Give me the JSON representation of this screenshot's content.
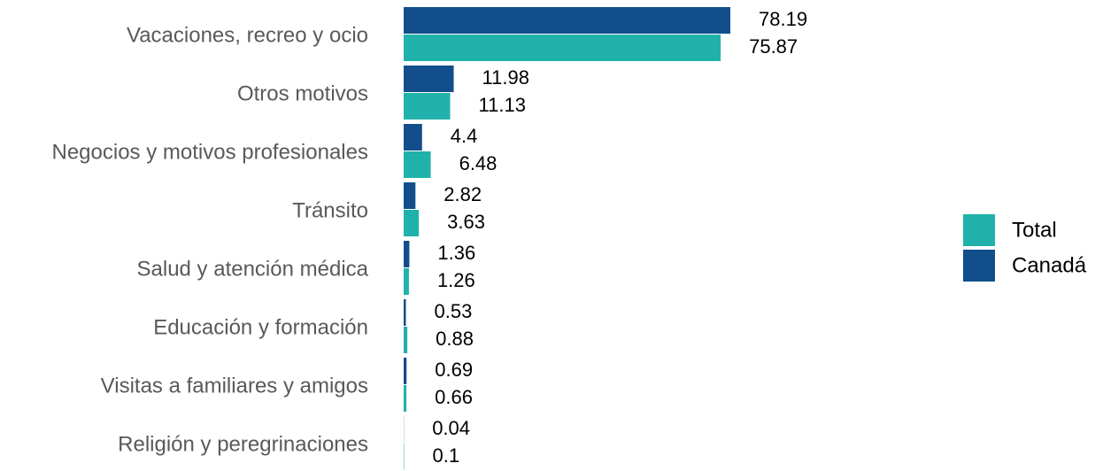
{
  "chart_data": {
    "type": "bar",
    "orientation": "horizontal",
    "categories": [
      "Vacaciones, recreo y ocio",
      "Otros motivos",
      "Negocios y motivos profesionales",
      "Tránsito",
      "Salud y atención médica",
      "Educación y formación",
      "Visitas a familiares y amigos",
      "Religión y peregrinaciones"
    ],
    "series": [
      {
        "name": "Total",
        "color": "#20b2aa",
        "values": [
          75.87,
          11.13,
          6.48,
          3.63,
          1.26,
          0.88,
          0.66,
          0.1
        ]
      },
      {
        "name": "Canadá",
        "color": "#124e8c",
        "values": [
          78.19,
          11.98,
          4.4,
          2.82,
          1.36,
          0.53,
          0.69,
          0.04
        ]
      }
    ],
    "xlim": [
      0,
      100
    ],
    "legend": "right"
  }
}
